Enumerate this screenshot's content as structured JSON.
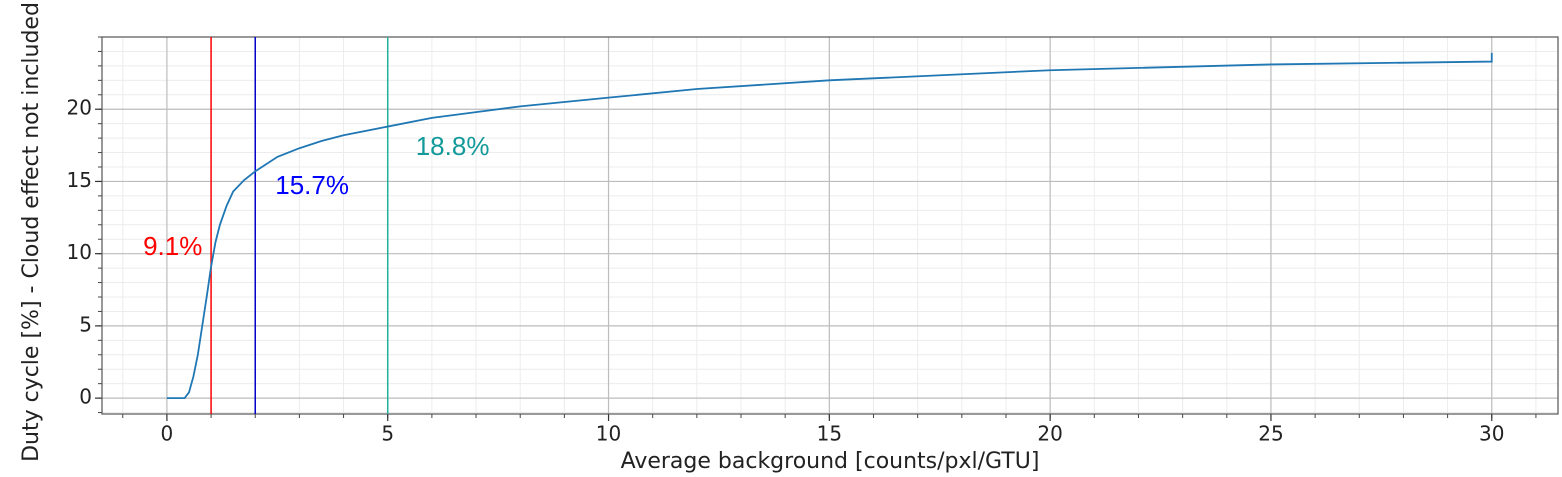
{
  "chart_data": {
    "type": "line",
    "xlabel": "Average background [counts/pxl/GTU]",
    "ylabel": "Duty cycle [%] - Cloud effect not included",
    "xlim": [
      -1.47,
      31.5
    ],
    "ylim": [
      -1.1,
      25
    ],
    "xticks": [
      0,
      5,
      10,
      15,
      20,
      25,
      30
    ],
    "yticks": [
      0,
      5,
      10,
      15,
      20
    ],
    "grid": true,
    "minor_step": 1,
    "series": [
      {
        "color": "#1f77b4",
        "x": [
          0,
          0.4,
          0.5,
          0.6,
          0.7,
          0.8,
          0.9,
          1.0,
          1.1,
          1.2,
          1.35,
          1.5,
          1.75,
          2,
          2.5,
          3,
          3.5,
          4,
          5,
          6,
          7,
          8,
          10,
          12,
          15,
          20,
          25,
          30,
          30
        ],
        "values": [
          0,
          0,
          0.4,
          1.5,
          3,
          5,
          7,
          9.1,
          10.8,
          12,
          13.3,
          14.3,
          15.1,
          15.7,
          16.7,
          17.3,
          17.8,
          18.2,
          18.8,
          19.4,
          19.8,
          20.2,
          20.8,
          21.4,
          22.0,
          22.7,
          23.1,
          23.3,
          23.9
        ]
      }
    ],
    "vlines": [
      {
        "x": 1,
        "color": "#ff0000",
        "label": "9.1%",
        "label_color": "#ff0000"
      },
      {
        "x": 2,
        "color": "#0000cc",
        "label": "15.7%",
        "label_color": "#0000ff"
      },
      {
        "x": 5,
        "color": "#20b09c",
        "label": "18.8%",
        "label_color": "#12999a"
      }
    ]
  }
}
